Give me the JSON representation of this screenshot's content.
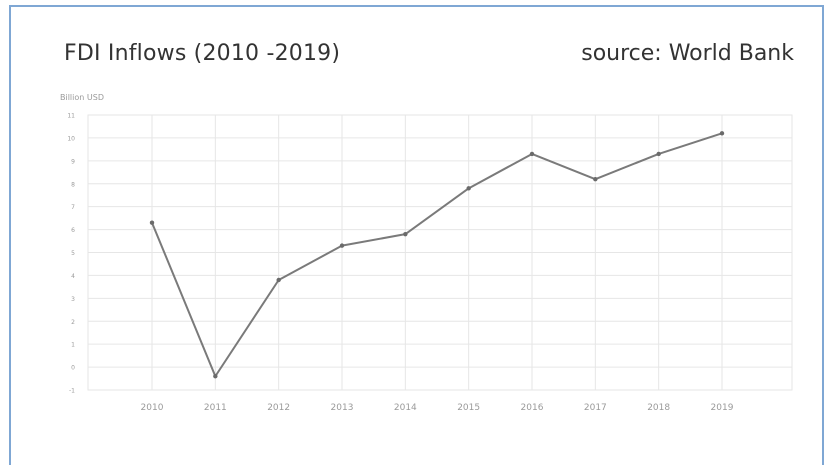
{
  "header": {
    "title": "FDI Inflows (2010 -2019)",
    "source": "source: World Bank"
  },
  "chart_data": {
    "type": "line",
    "title": "FDI Inflows (2010 -2019)",
    "subtitle": "source: World Bank",
    "xlabel": "",
    "ylabel": "Billion USD",
    "categories": [
      "2010",
      "2011",
      "2012",
      "2013",
      "2014",
      "2015",
      "2016",
      "2017",
      "2018",
      "2019"
    ],
    "series": [
      {
        "values": [
          6.3,
          -0.4,
          3.8,
          5.3,
          5.8,
          7.8,
          9.3,
          8.2,
          9.3,
          10.2
        ]
      }
    ],
    "yticks": [
      "-1",
      "0",
      "1",
      "2",
      "3",
      "4",
      "5",
      "6",
      "7",
      "8",
      "9",
      "10",
      "11"
    ],
    "ylim": [
      -1,
      11
    ],
    "grid": true,
    "colors": {
      "line": "#7a7a7a",
      "point": "#6a6a6a",
      "grid": "#e6e6e6",
      "tick_label": "#9a9a9a"
    }
  }
}
